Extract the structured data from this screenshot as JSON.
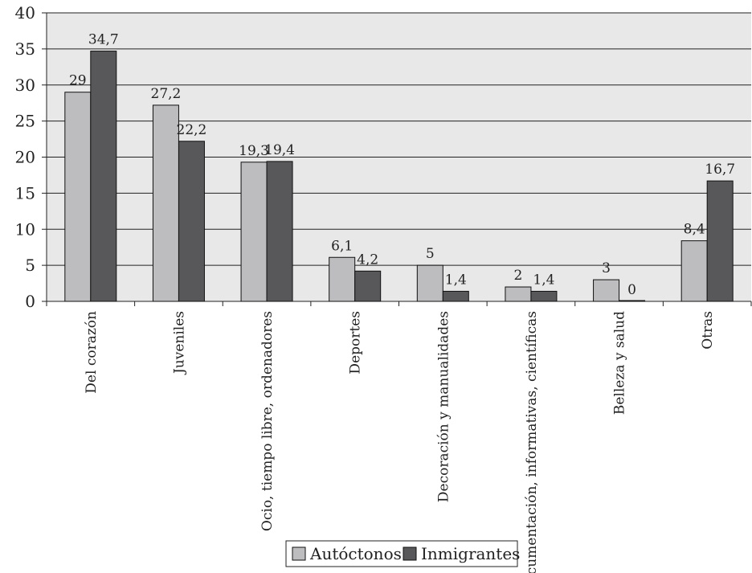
{
  "chart_data": {
    "type": "bar",
    "categories": [
      "Del corazón",
      "Juveniles",
      "Ocio, tiempo libre, ordenadores",
      "Deportes",
      "Decoración y manualidades",
      "Documentación, informativas, científicas",
      "Belleza y salud",
      "Otras"
    ],
    "series": [
      {
        "name": "Autóctonos",
        "values": [
          29,
          27.2,
          19.3,
          6.1,
          5,
          2,
          3,
          8.4
        ],
        "labels": [
          "29",
          "27,2",
          "19,3",
          "6,1",
          "5",
          "2",
          "3",
          "8,4"
        ],
        "color": "#bdbdc0"
      },
      {
        "name": "Inmigrantes",
        "values": [
          34.7,
          22.2,
          19.4,
          4.2,
          1.4,
          1.4,
          0,
          16.7
        ],
        "labels": [
          "34,7",
          "22,2",
          "19,4",
          "4,2",
          "1,4",
          "1,4",
          "0",
          "16,7"
        ],
        "color": "#58585b"
      }
    ],
    "ylim": [
      0,
      40
    ],
    "yticks": [
      0,
      5,
      10,
      15,
      20,
      25,
      30,
      35,
      40
    ],
    "grid": true,
    "plot_background": "#e8e8e8",
    "legend_position": "bottom-center",
    "title": "",
    "xlabel": "",
    "ylabel": ""
  }
}
